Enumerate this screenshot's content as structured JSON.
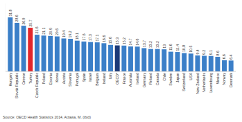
{
  "chart_data": {
    "type": "bar",
    "categories": [
      "Hungary",
      "Slovak Republic",
      "Greece",
      "Turkey",
      "Czech Republic",
      "Poland",
      "Estonia",
      "Korea",
      "Austria",
      "Slovenia",
      "Portugal",
      "Spain",
      "Israel",
      "Belgium",
      "Ireland",
      "Italy",
      "OECD*",
      "France",
      "Australia",
      "Iceland",
      "Germany",
      "Finland",
      "Canada",
      "Chile",
      "Sweden",
      "Japan",
      "Switzerland",
      "USA",
      "New Zealand",
      "Netherlands",
      "Luxembourg",
      "Mexico",
      "Norway",
      "Denmark"
    ],
    "values": [
      31.8,
      28.6,
      26.9,
      25.7,
      21.6,
      21.1,
      20.9,
      20.6,
      19.4,
      19.2,
      18.1,
      17.6,
      17.3,
      17.1,
      16.6,
      15.6,
      15.3,
      15.2,
      14.7,
      14.6,
      13.7,
      13.2,
      13.2,
      13,
      11.6,
      11.4,
      10.8,
      10.5,
      9.4,
      9.2,
      9.1,
      8.6,
      6.6,
      6.4
    ],
    "colors": [
      "#3b7fc8",
      "#3b7fc8",
      "#3b7fc8",
      "#e3262b",
      "#3b7fc8",
      "#3b7fc8",
      "#3b7fc8",
      "#3b7fc8",
      "#3b7fc8",
      "#3b7fc8",
      "#3b7fc8",
      "#3b7fc8",
      "#3b7fc8",
      "#3b7fc8",
      "#3b7fc8",
      "#3b7fc8",
      "#1c3a78",
      "#3b7fc8",
      "#3b7fc8",
      "#3b7fc8",
      "#3b7fc8",
      "#3b7fc8",
      "#3b7fc8",
      "#3b7fc8",
      "#3b7fc8",
      "#3b7fc8",
      "#3b7fc8",
      "#3b7fc8",
      "#3b7fc8",
      "#3b7fc8",
      "#3b7fc8",
      "#3b7fc8",
      "#3b7fc8",
      "#3b7fc8"
    ],
    "ylim": [
      0,
      40
    ],
    "data_labels": true,
    "tick_labels": "x",
    "annotations": [
      "Source: OECD Health Statistics 2014, Aizawa, M. (ibid)"
    ]
  }
}
